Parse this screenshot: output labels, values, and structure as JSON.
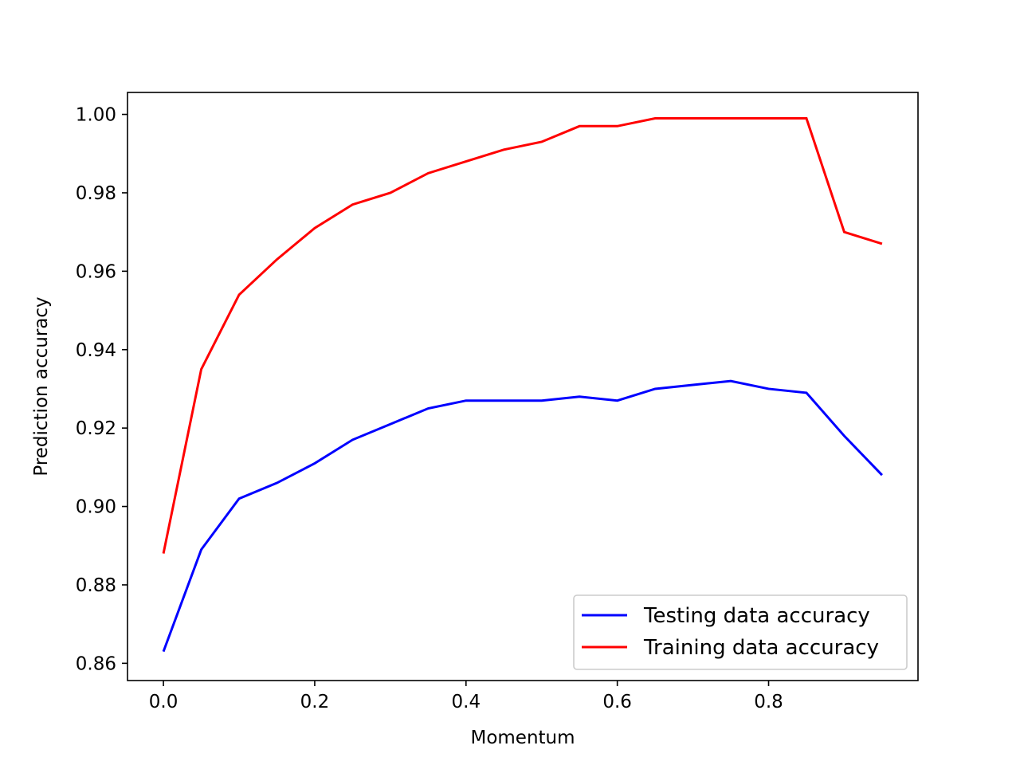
{
  "chart_data": {
    "type": "line",
    "title": "",
    "xlabel": "Momentum",
    "ylabel": "Prediction accuracy",
    "xlim": [
      -0.0475,
      0.9975
    ],
    "ylim": [
      0.8556,
      1.0056
    ],
    "x_ticks": [
      0.0,
      0.2,
      0.4,
      0.6,
      0.8
    ],
    "x_tick_labels": [
      "0.0",
      "0.2",
      "0.4",
      "0.6",
      "0.8"
    ],
    "y_ticks": [
      0.86,
      0.88,
      0.9,
      0.92,
      0.94,
      0.96,
      0.98,
      1.0
    ],
    "y_tick_labels": [
      "0.86",
      "0.88",
      "0.90",
      "0.92",
      "0.94",
      "0.96",
      "0.98",
      "1.00"
    ],
    "grid": false,
    "legend_position": "lower-right",
    "x": [
      0.0,
      0.05,
      0.1,
      0.15,
      0.2,
      0.25,
      0.3,
      0.35,
      0.4,
      0.45,
      0.5,
      0.55,
      0.6,
      0.65,
      0.7,
      0.75,
      0.8,
      0.85,
      0.9,
      0.95
    ],
    "series": [
      {
        "name": "Testing data accuracy",
        "color": "#0000ff",
        "values": [
          0.863,
          0.889,
          0.902,
          0.906,
          0.911,
          0.917,
          0.921,
          0.925,
          0.927,
          0.927,
          0.927,
          0.928,
          0.927,
          0.93,
          0.931,
          0.932,
          0.93,
          0.929,
          0.918,
          0.908
        ]
      },
      {
        "name": "Training data accuracy",
        "color": "#ff0000",
        "values": [
          0.888,
          0.935,
          0.954,
          0.963,
          0.971,
          0.977,
          0.98,
          0.985,
          0.988,
          0.991,
          0.993,
          0.997,
          0.997,
          0.999,
          0.999,
          0.999,
          0.999,
          0.999,
          0.97,
          0.967
        ]
      }
    ]
  }
}
